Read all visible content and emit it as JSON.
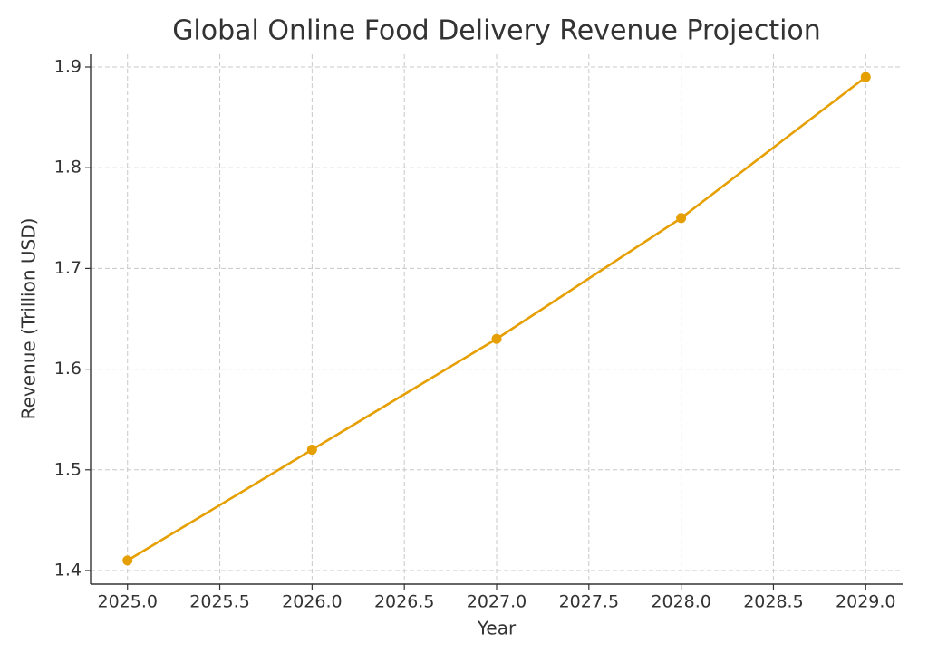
{
  "chart_data": {
    "type": "line",
    "title": "Global Online Food Delivery Revenue Projection",
    "x_label": "Year",
    "y_label": "Revenue (Trillion USD)",
    "x": [
      2025,
      2026,
      2027,
      2028,
      2029
    ],
    "values": [
      1.41,
      1.52,
      1.63,
      1.75,
      1.89
    ],
    "color": "#e69f00",
    "xlim": [
      2024.8,
      2029.2
    ],
    "xticks": [
      {
        "value": 2025,
        "label": "2025.0"
      },
      {
        "value": 2025.5,
        "label": "2025.5"
      },
      {
        "value": 2026,
        "label": "2026.0"
      },
      {
        "value": 2026.5,
        "label": "2026.5"
      },
      {
        "value": 2027,
        "label": "2027.0"
      },
      {
        "value": 2027.5,
        "label": "2027.5"
      },
      {
        "value": 2028,
        "label": "2028.0"
      },
      {
        "value": 2028.5,
        "label": "2028.5"
      },
      {
        "value": 2029,
        "label": "2029.0"
      }
    ],
    "ylim": [
      1.3865,
      1.9126
    ],
    "yticks": [
      1.4,
      1.5,
      1.6,
      1.7,
      1.8,
      1.9
    ],
    "grid": true
  }
}
